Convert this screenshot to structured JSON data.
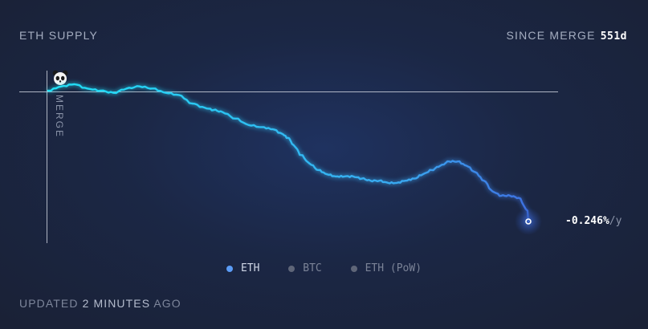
{
  "header": {
    "title": "ETH SUPPLY",
    "since_label": "SINCE MERGE",
    "since_value": "551d"
  },
  "merge_label": "MERGE",
  "end_value": "-0.246%",
  "end_unit": "/y",
  "legend": [
    {
      "label": "ETH",
      "color": "#5b9cf6",
      "active": true
    },
    {
      "label": "BTC",
      "color": "#5f6678",
      "active": false
    },
    {
      "label": "ETH (PoW)",
      "color": "#5f6678",
      "active": false
    }
  ],
  "footer": {
    "updated_prefix": "UPDATED ",
    "updated_value": "2 MINUTES",
    "updated_suffix": " AGO"
  },
  "colors": {
    "line_start": "#1fe0f5",
    "line_end": "#3d6fe0",
    "baseline": "#c9cfdb"
  },
  "chart_data": {
    "type": "line",
    "series": [
      {
        "name": "ETH",
        "x": [
          0,
          15,
          30,
          45,
          60,
          75,
          90,
          105,
          120,
          135,
          150,
          165,
          180,
          190,
          200,
          215,
          230,
          245,
          258,
          268,
          275,
          283,
          290,
          300,
          310,
          320,
          330,
          340,
          350,
          360,
          370,
          380,
          390,
          400,
          410,
          420,
          430,
          440,
          450,
          460,
          470,
          480,
          490,
          500,
          510,
          520,
          530,
          540,
          550,
          551
        ],
        "y": [
          0.0,
          0.02,
          0.03,
          0.01,
          0.0,
          -0.01,
          0.01,
          0.02,
          0.01,
          -0.01,
          -0.02,
          -0.06,
          -0.08,
          -0.09,
          -0.1,
          -0.13,
          -0.16,
          -0.17,
          -0.18,
          -0.2,
          -0.22,
          -0.26,
          -0.3,
          -0.34,
          -0.37,
          -0.39,
          -0.4,
          -0.4,
          -0.4,
          -0.41,
          -0.42,
          -0.42,
          -0.43,
          -0.43,
          -0.42,
          -0.41,
          -0.39,
          -0.37,
          -0.35,
          -0.33,
          -0.33,
          -0.35,
          -0.38,
          -0.42,
          -0.47,
          -0.49,
          -0.49,
          -0.5,
          -0.56,
          -0.61
        ]
      }
    ],
    "xlim": [
      0,
      551
    ],
    "ylim": [
      -0.61,
      0.03
    ],
    "baseline": 0,
    "grid": false,
    "legend": "bottom-center"
  }
}
